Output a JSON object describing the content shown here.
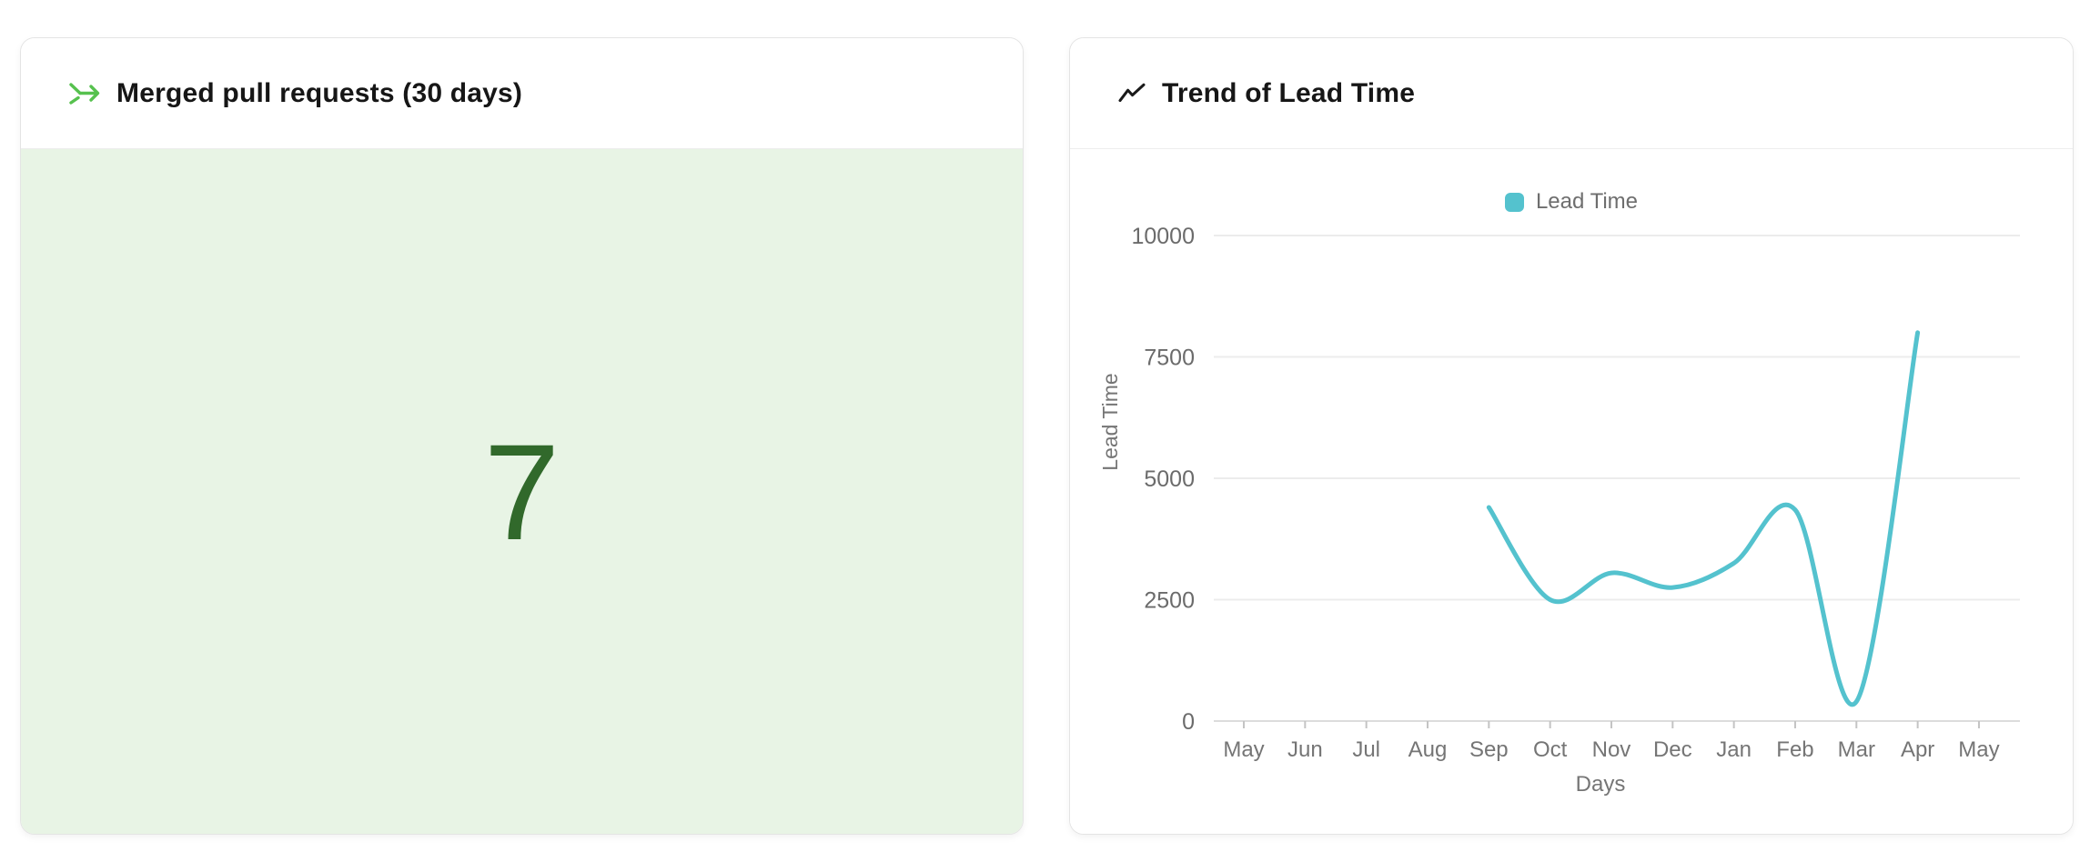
{
  "cards": {
    "merged_prs": {
      "title": "Merged pull requests (30 days)",
      "value": "7",
      "icon": "merge-icon",
      "colors": {
        "icon_green": "#56c14e",
        "value_text": "#31692b",
        "value_background": "#e8f4e5"
      }
    },
    "lead_time": {
      "title": "Trend of Lead Time",
      "icon": "trend-up-icon",
      "icon_color": "#1a1a1a"
    }
  },
  "chart_data": {
    "type": "line",
    "title": "Trend of Lead Time",
    "xlabel": "Days",
    "ylabel": "Lead Time",
    "categories": [
      "May",
      "Jun",
      "Jul",
      "Aug",
      "Sep",
      "Oct",
      "Nov",
      "Dec",
      "Jan",
      "Feb",
      "Mar",
      "Apr",
      "May"
    ],
    "series": [
      {
        "name": "Lead Time",
        "color": "#54c2ce",
        "values": [
          null,
          null,
          null,
          null,
          4400,
          2500,
          3050,
          2750,
          3250,
          4350,
          400,
          8000,
          null
        ]
      }
    ],
    "yticks": [
      0,
      2500,
      5000,
      7500,
      10000
    ],
    "ylim": [
      0,
      10000
    ],
    "grid": true,
    "smooth": true,
    "legend_position": "top-center",
    "colors": {
      "gridline": "#ececec",
      "axis_line": "#dcdcdc",
      "tick_mark": "#c4c4c4",
      "tick_text": "#6b6b6b",
      "axis_title_text": "#757575"
    }
  }
}
